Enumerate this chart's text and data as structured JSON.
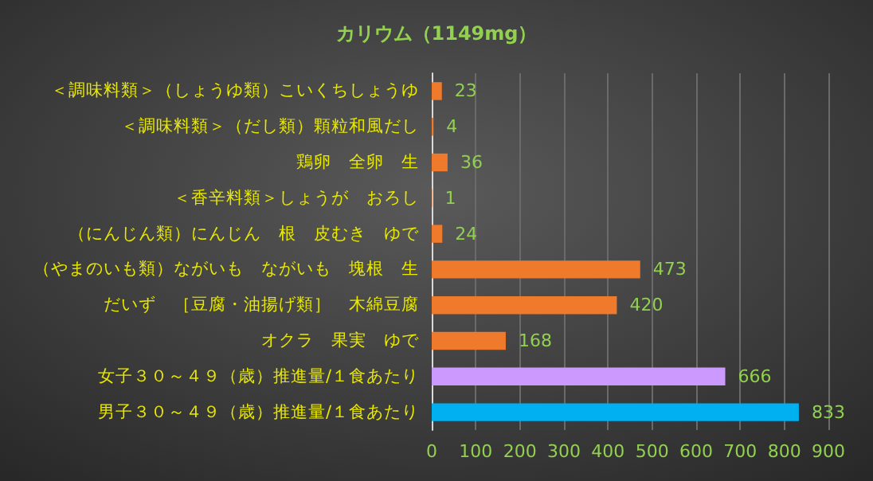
{
  "chart_data": {
    "type": "bar",
    "orientation": "horizontal",
    "title": "カリウム（1149mg）",
    "categories": [
      "＜調味料類＞（しょうゆ類）こいくちしょうゆ",
      "＜調味料類＞（だし類）顆粒和風だし",
      "鶏卵　全卵　生",
      "＜香辛料類＞しょうが　おろし",
      "（にんじん類）にんじん　根　皮むき　ゆで",
      "（やまのいも類）ながいも　ながいも　塊根　生",
      "だいず　［豆腐・油揚げ類］　木綿豆腐",
      "オクラ　果実　ゆで",
      "女子３０～４９（歳）推進量/１食あたり",
      "男子３０～４９（歳）推進量/１食あたり"
    ],
    "values": [
      23,
      4,
      36,
      1,
      24,
      473,
      420,
      168,
      666,
      833
    ],
    "colors": [
      "#f07a2c",
      "#f07a2c",
      "#f07a2c",
      "#f07a2c",
      "#f07a2c",
      "#f07a2c",
      "#f07a2c",
      "#f07a2c",
      "#cc99ff",
      "#00b0f0"
    ],
    "xlim": [
      0,
      900
    ],
    "xticks": [
      0,
      100,
      200,
      300,
      400,
      500,
      600,
      700,
      800,
      900
    ],
    "grid": "x",
    "data_labels": true
  }
}
